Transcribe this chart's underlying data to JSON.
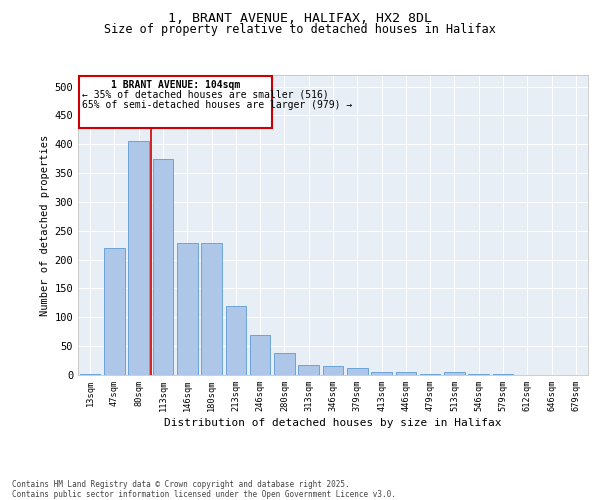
{
  "title1": "1, BRANT AVENUE, HALIFAX, HX2 8DL",
  "title2": "Size of property relative to detached houses in Halifax",
  "xlabel": "Distribution of detached houses by size in Halifax",
  "ylabel": "Number of detached properties",
  "categories": [
    "13sqm",
    "47sqm",
    "80sqm",
    "113sqm",
    "146sqm",
    "180sqm",
    "213sqm",
    "246sqm",
    "280sqm",
    "313sqm",
    "346sqm",
    "379sqm",
    "413sqm",
    "446sqm",
    "479sqm",
    "513sqm",
    "546sqm",
    "579sqm",
    "612sqm",
    "646sqm",
    "679sqm"
  ],
  "values": [
    2,
    220,
    405,
    375,
    228,
    228,
    120,
    70,
    38,
    18,
    15,
    12,
    5,
    5,
    2,
    6,
    2,
    1,
    0,
    0,
    0
  ],
  "bar_color": "#aec6e8",
  "bar_edge_color": "#5b9bd5",
  "vline_x": 2.5,
  "vline_color": "#cc0000",
  "annotation_title": "1 BRANT AVENUE: 104sqm",
  "annotation_line1": "← 35% of detached houses are smaller (516)",
  "annotation_line2": "65% of semi-detached houses are larger (979) →",
  "annotation_box_color": "#ffffff",
  "annotation_box_edge": "#cc0000",
  "ylim": [
    0,
    520
  ],
  "yticks": [
    0,
    50,
    100,
    150,
    200,
    250,
    300,
    350,
    400,
    450,
    500
  ],
  "bg_color": "#e8eef5",
  "grid_color": "#ffffff",
  "footer1": "Contains HM Land Registry data © Crown copyright and database right 2025.",
  "footer2": "Contains public sector information licensed under the Open Government Licence v3.0."
}
